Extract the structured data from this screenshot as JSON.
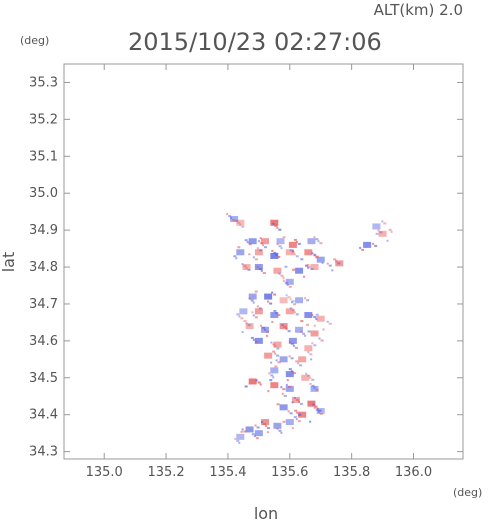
{
  "header": {
    "altitude": "ALT(km) 2.0",
    "datetime": "2015/10/23 02:27:06"
  },
  "chart_data": {
    "type": "heatmap",
    "title": "2015/10/23 02:27:06",
    "subtitle": "ALT(km) 2.0",
    "xlabel": "lon",
    "ylabel": "lat",
    "xunit": "(deg)",
    "yunit": "(deg)",
    "xlim": [
      134.87,
      136.16
    ],
    "ylim": [
      34.28,
      35.35
    ],
    "xticks": [
      "135.0",
      "135.2",
      "135.4",
      "135.6",
      "135.8",
      "136.0"
    ],
    "yticks": [
      "34.3",
      "34.4",
      "34.5",
      "34.6",
      "34.7",
      "34.8",
      "34.9",
      "35.0",
      "35.1",
      "35.2",
      "35.3"
    ],
    "grid": false,
    "colors": {
      "positive": "#e85050",
      "negative": "#5060e0",
      "frame": "#999999",
      "text": "#555555"
    },
    "cells": [
      {
        "lon": 135.42,
        "lat": 34.93,
        "v": -0.4
      },
      {
        "lon": 135.44,
        "lat": 34.92,
        "v": 0.2
      },
      {
        "lon": 135.55,
        "lat": 34.92,
        "v": 0.8
      },
      {
        "lon": 135.88,
        "lat": 34.91,
        "v": -0.3
      },
      {
        "lon": 135.9,
        "lat": 34.89,
        "v": 0.3
      },
      {
        "lon": 135.48,
        "lat": 34.87,
        "v": -0.6
      },
      {
        "lon": 135.52,
        "lat": 34.87,
        "v": 0.5
      },
      {
        "lon": 135.57,
        "lat": 34.87,
        "v": -0.3
      },
      {
        "lon": 135.61,
        "lat": 34.86,
        "v": 0.7
      },
      {
        "lon": 135.67,
        "lat": 34.87,
        "v": -0.4
      },
      {
        "lon": 135.85,
        "lat": 34.86,
        "v": -0.7
      },
      {
        "lon": 135.44,
        "lat": 34.84,
        "v": -0.5
      },
      {
        "lon": 135.5,
        "lat": 34.84,
        "v": 0.4
      },
      {
        "lon": 135.55,
        "lat": 34.83,
        "v": -0.8
      },
      {
        "lon": 135.6,
        "lat": 34.84,
        "v": 0.3
      },
      {
        "lon": 135.66,
        "lat": 34.84,
        "v": 0.6
      },
      {
        "lon": 135.7,
        "lat": 34.82,
        "v": -0.5
      },
      {
        "lon": 135.76,
        "lat": 34.81,
        "v": 0.5
      },
      {
        "lon": 135.46,
        "lat": 34.8,
        "v": 0.3
      },
      {
        "lon": 135.5,
        "lat": 34.8,
        "v": -0.6
      },
      {
        "lon": 135.56,
        "lat": 34.79,
        "v": 0.4
      },
      {
        "lon": 135.63,
        "lat": 34.79,
        "v": -0.7
      },
      {
        "lon": 135.68,
        "lat": 34.8,
        "v": 0.3
      },
      {
        "lon": 135.6,
        "lat": 34.76,
        "v": -0.4
      },
      {
        "lon": 135.48,
        "lat": 34.72,
        "v": -0.5
      },
      {
        "lon": 135.53,
        "lat": 34.72,
        "v": -0.8
      },
      {
        "lon": 135.58,
        "lat": 34.71,
        "v": 0.2
      },
      {
        "lon": 135.63,
        "lat": 34.71,
        "v": -0.4
      },
      {
        "lon": 135.45,
        "lat": 34.68,
        "v": -0.3
      },
      {
        "lon": 135.5,
        "lat": 34.68,
        "v": 0.5
      },
      {
        "lon": 135.55,
        "lat": 34.67,
        "v": -0.6
      },
      {
        "lon": 135.6,
        "lat": 34.68,
        "v": 0.4
      },
      {
        "lon": 135.66,
        "lat": 34.67,
        "v": -0.7
      },
      {
        "lon": 135.7,
        "lat": 34.66,
        "v": 0.3
      },
      {
        "lon": 135.47,
        "lat": 34.64,
        "v": 0.3
      },
      {
        "lon": 135.52,
        "lat": 34.63,
        "v": -0.5
      },
      {
        "lon": 135.58,
        "lat": 34.64,
        "v": 0.6
      },
      {
        "lon": 135.63,
        "lat": 34.63,
        "v": -0.4
      },
      {
        "lon": 135.68,
        "lat": 34.62,
        "v": 0.5
      },
      {
        "lon": 135.5,
        "lat": 34.6,
        "v": -0.7
      },
      {
        "lon": 135.56,
        "lat": 34.59,
        "v": 0.4
      },
      {
        "lon": 135.61,
        "lat": 34.6,
        "v": -0.6
      },
      {
        "lon": 135.66,
        "lat": 34.58,
        "v": 0.3
      },
      {
        "lon": 135.53,
        "lat": 34.56,
        "v": 0.5
      },
      {
        "lon": 135.58,
        "lat": 34.55,
        "v": -0.5
      },
      {
        "lon": 135.64,
        "lat": 34.55,
        "v": 0.4
      },
      {
        "lon": 135.55,
        "lat": 34.52,
        "v": -0.4
      },
      {
        "lon": 135.6,
        "lat": 34.51,
        "v": -0.7
      },
      {
        "lon": 135.65,
        "lat": 34.5,
        "v": 0.3
      },
      {
        "lon": 135.48,
        "lat": 34.49,
        "v": 0.8
      },
      {
        "lon": 135.55,
        "lat": 34.48,
        "v": 0.7
      },
      {
        "lon": 135.6,
        "lat": 34.47,
        "v": -0.5
      },
      {
        "lon": 135.68,
        "lat": 34.47,
        "v": -0.4
      },
      {
        "lon": 135.62,
        "lat": 34.44,
        "v": 0.4
      },
      {
        "lon": 135.67,
        "lat": 34.43,
        "v": 0.8
      },
      {
        "lon": 135.58,
        "lat": 34.42,
        "v": -0.6
      },
      {
        "lon": 135.64,
        "lat": 34.4,
        "v": 0.7
      },
      {
        "lon": 135.7,
        "lat": 34.41,
        "v": -0.3
      },
      {
        "lon": 135.52,
        "lat": 34.38,
        "v": 0.6
      },
      {
        "lon": 135.56,
        "lat": 34.37,
        "v": -0.5
      },
      {
        "lon": 135.6,
        "lat": 34.38,
        "v": -0.4
      },
      {
        "lon": 135.47,
        "lat": 34.36,
        "v": -0.6
      },
      {
        "lon": 135.5,
        "lat": 34.35,
        "v": -0.5
      },
      {
        "lon": 135.44,
        "lat": 34.34,
        "v": -0.3
      }
    ]
  }
}
